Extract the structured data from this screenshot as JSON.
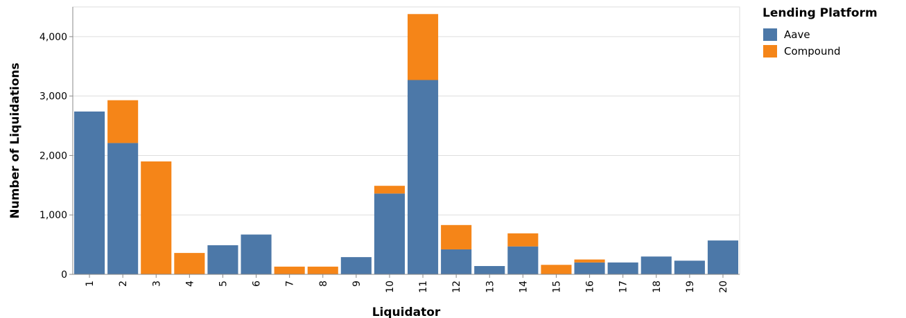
{
  "chart_data": {
    "type": "bar",
    "stacked": true,
    "categories": [
      "1",
      "2",
      "3",
      "4",
      "5",
      "6",
      "7",
      "8",
      "9",
      "10",
      "11",
      "12",
      "13",
      "14",
      "15",
      "16",
      "17",
      "18",
      "19",
      "20"
    ],
    "series": [
      {
        "name": "Aave",
        "color": "#4c78a8",
        "values": [
          2740,
          2210,
          0,
          0,
          490,
          670,
          0,
          0,
          290,
          1360,
          3270,
          420,
          140,
          470,
          0,
          200,
          200,
          300,
          230,
          570
        ]
      },
      {
        "name": "Compound",
        "color": "#f58518",
        "values": [
          0,
          720,
          1900,
          360,
          0,
          0,
          130,
          130,
          0,
          130,
          1110,
          410,
          0,
          220,
          160,
          50,
          0,
          0,
          0,
          0
        ]
      }
    ],
    "xlabel": "Liquidator",
    "ylabel": "Number of Liquidations",
    "ylim": [
      0,
      4500
    ],
    "yticks": [
      0,
      1000,
      2000,
      3000,
      4000
    ],
    "ytick_labels": [
      "0",
      "1,000",
      "2,000",
      "3,000",
      "4,000"
    ],
    "grid": true,
    "legend": {
      "title": "Lending Platform",
      "position": "top-right"
    }
  }
}
